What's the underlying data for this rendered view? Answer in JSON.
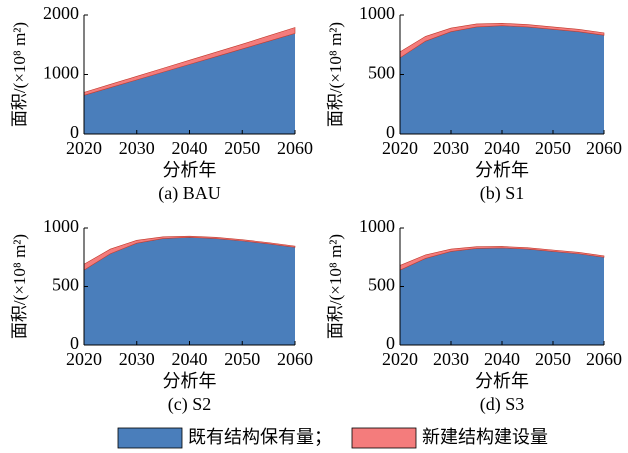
{
  "chart_data": [
    {
      "type": "area",
      "stacked": true,
      "subtitle": "(a) BAU",
      "x_label": "分析年",
      "y_label": "面积/(×10⁸ m²)",
      "x": [
        2020,
        2025,
        2030,
        2035,
        2040,
        2045,
        2050,
        2055,
        2060
      ],
      "series": [
        {
          "name": "既有结构保有量；",
          "color": "#4a7ebb",
          "values": [
            650,
            780,
            910,
            1040,
            1170,
            1300,
            1430,
            1560,
            1690
          ]
        },
        {
          "name": "新建结构建设量",
          "color": "#f47c7c",
          "values": [
            50,
            55,
            60,
            65,
            70,
            75,
            80,
            90,
            100
          ]
        }
      ],
      "xlim": [
        2020,
        2060
      ],
      "xticks": [
        2020,
        2030,
        2040,
        2050,
        2060
      ],
      "ylim": [
        0,
        2000
      ],
      "yticks": [
        0,
        1000,
        2000
      ]
    },
    {
      "type": "area",
      "stacked": true,
      "subtitle": "(b) S1",
      "x_label": "分析年",
      "y_label": "面积/(×10⁸ m²)",
      "x": [
        2020,
        2025,
        2030,
        2035,
        2040,
        2045,
        2050,
        2055,
        2060
      ],
      "series": [
        {
          "name": "既有结构保有量；",
          "color": "#4a7ebb",
          "values": [
            640,
            780,
            860,
            900,
            910,
            900,
            880,
            860,
            830
          ]
        },
        {
          "name": "新建结构建设量",
          "color": "#f47c7c",
          "values": [
            50,
            40,
            30,
            25,
            20,
            20,
            20,
            20,
            20
          ]
        }
      ],
      "xlim": [
        2020,
        2060
      ],
      "xticks": [
        2020,
        2030,
        2040,
        2050,
        2060
      ],
      "ylim": [
        0,
        1000
      ],
      "yticks": [
        0,
        500,
        1000
      ]
    },
    {
      "type": "area",
      "stacked": true,
      "subtitle": "(c) S2",
      "x_label": "分析年",
      "y_label": "面积/(×10⁸ m²)",
      "x": [
        2020,
        2025,
        2030,
        2035,
        2040,
        2045,
        2050,
        2055,
        2060
      ],
      "series": [
        {
          "name": "既有结构保有量；",
          "color": "#4a7ebb",
          "values": [
            640,
            780,
            870,
            910,
            920,
            910,
            890,
            865,
            835
          ]
        },
        {
          "name": "新建结构建设量",
          "color": "#f47c7c",
          "values": [
            50,
            40,
            25,
            15,
            10,
            10,
            10,
            10,
            10
          ]
        }
      ],
      "xlim": [
        2020,
        2060
      ],
      "xticks": [
        2020,
        2030,
        2040,
        2050,
        2060
      ],
      "ylim": [
        0,
        1000
      ],
      "yticks": [
        0,
        500,
        1000
      ]
    },
    {
      "type": "area",
      "stacked": true,
      "subtitle": "(d) S3",
      "x_label": "分析年",
      "y_label": "面积/(×10⁸ m²)",
      "x": [
        2020,
        2025,
        2030,
        2035,
        2040,
        2045,
        2050,
        2055,
        2060
      ],
      "series": [
        {
          "name": "既有结构保有量；",
          "color": "#4a7ebb",
          "values": [
            640,
            740,
            800,
            825,
            830,
            820,
            800,
            780,
            750
          ]
        },
        {
          "name": "新建结构建设量",
          "color": "#f47c7c",
          "values": [
            40,
            30,
            20,
            15,
            12,
            12,
            12,
            12,
            12
          ]
        }
      ],
      "xlim": [
        2020,
        2060
      ],
      "xticks": [
        2020,
        2030,
        2040,
        2050,
        2060
      ],
      "ylim": [
        0,
        1000
      ],
      "yticks": [
        0,
        500,
        1000
      ]
    }
  ]
}
